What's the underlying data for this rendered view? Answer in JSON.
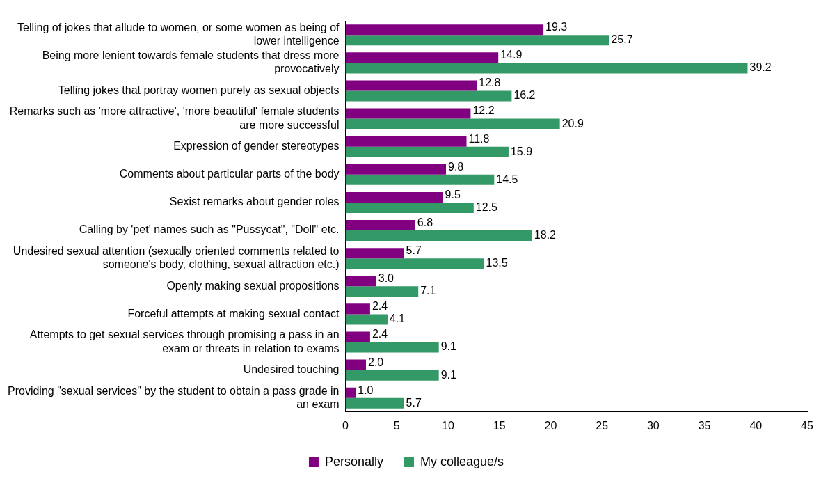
{
  "chart_data": {
    "type": "bar",
    "orientation": "horizontal",
    "categories": [
      "Telling of jokes that allude to women, or some women as being of lower intelligence",
      "Being more lenient towards female students that dress more provocatively",
      "Telling jokes that portray women purely as sexual objects",
      "Remarks such as 'more attractive', 'more beautiful' female students are more successful",
      "Expression of gender stereotypes",
      "Comments about particular parts of the body",
      "Sexist remarks about gender roles",
      "Calling by 'pet' names such as \"Pussycat\", \"Doll\" etc.",
      "Undesired sexual attention (sexually oriented comments related to someone's body, clothing, sexual attraction etc.)",
      "Openly making sexual propositions",
      "Forceful attempts at making sexual contact",
      "Attempts to get sexual services through promising a pass in an exam or threats in relation to exams",
      "Undesired touching",
      "Providing \"sexual services\" by the student to obtain a pass grade in an exam"
    ],
    "series": [
      {
        "name": "Personally",
        "color": "#800080",
        "values": [
          19.3,
          14.9,
          12.8,
          12.2,
          11.8,
          9.8,
          9.5,
          6.8,
          5.7,
          3.0,
          2.4,
          2.4,
          2.0,
          1.0
        ],
        "value_labels": [
          "19.3",
          "14.9",
          "12.8",
          "12.2",
          "11.8",
          "9.8",
          "9.5",
          "6.8",
          "5.7",
          "3.0",
          "2.4",
          "2.4",
          "2.0",
          "1.0"
        ]
      },
      {
        "name": "My colleague/s",
        "color": "#339966",
        "values": [
          25.7,
          39.2,
          16.2,
          20.9,
          15.9,
          14.5,
          12.5,
          18.2,
          13.5,
          7.1,
          4.1,
          9.1,
          9.1,
          5.7
        ],
        "value_labels": [
          "25.7",
          "39.2",
          "16.2",
          "20.9",
          "15.9",
          "14.5",
          "12.5",
          "18.2",
          "13.5",
          "7.1",
          "4.1",
          "9.1",
          "9.1",
          "5.7"
        ]
      }
    ],
    "xlim": [
      0,
      45
    ],
    "xticks": [
      0,
      5,
      10,
      15,
      20,
      25,
      30,
      35,
      40,
      45
    ],
    "grid": false,
    "legend": "bottom"
  }
}
